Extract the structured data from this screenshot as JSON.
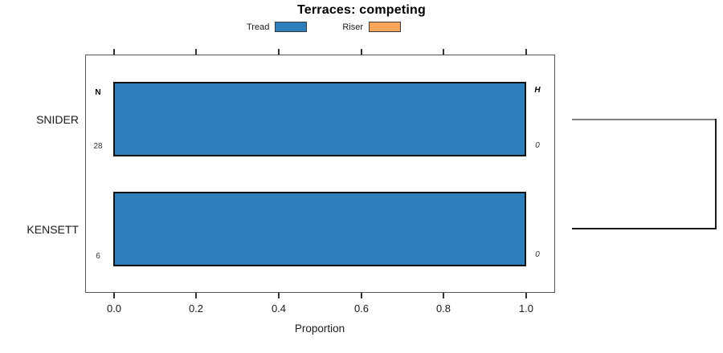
{
  "title": "Terraces: competing",
  "legend": {
    "items": [
      {
        "label": "Tread",
        "color": "#2E7EBC"
      },
      {
        "label": "Riser",
        "color": "#F9A65A"
      }
    ]
  },
  "chart_data": {
    "type": "bar",
    "orientation": "horizontal",
    "title": "Terraces: competing",
    "categories": [
      "SNIDER",
      "KENSETT"
    ],
    "series": [
      {
        "name": "Tread",
        "color": "#2E7EBC",
        "values": [
          1.0,
          1.0
        ]
      },
      {
        "name": "Riser",
        "color": "#F9A65A",
        "values": [
          0.0,
          0.0
        ]
      }
    ],
    "row_annotations": {
      "left_header": "N",
      "right_header": "H",
      "left_values": [
        "28",
        "6"
      ],
      "right_values": [
        "0",
        "0"
      ]
    },
    "xlabel": "Proportion",
    "xlim": [
      0,
      1
    ],
    "xticks": [
      "0.0",
      "0.2",
      "0.4",
      "0.6",
      "0.8",
      "1.0"
    ],
    "grid": false,
    "legend_position": "top-center",
    "axis_ticks": "top-and-bottom",
    "dendrogram": {
      "position": "right",
      "joined_categories": [
        "SNIDER",
        "KENSETT"
      ],
      "branch_colors": [
        "#808080",
        "#1a1a1a"
      ]
    }
  }
}
